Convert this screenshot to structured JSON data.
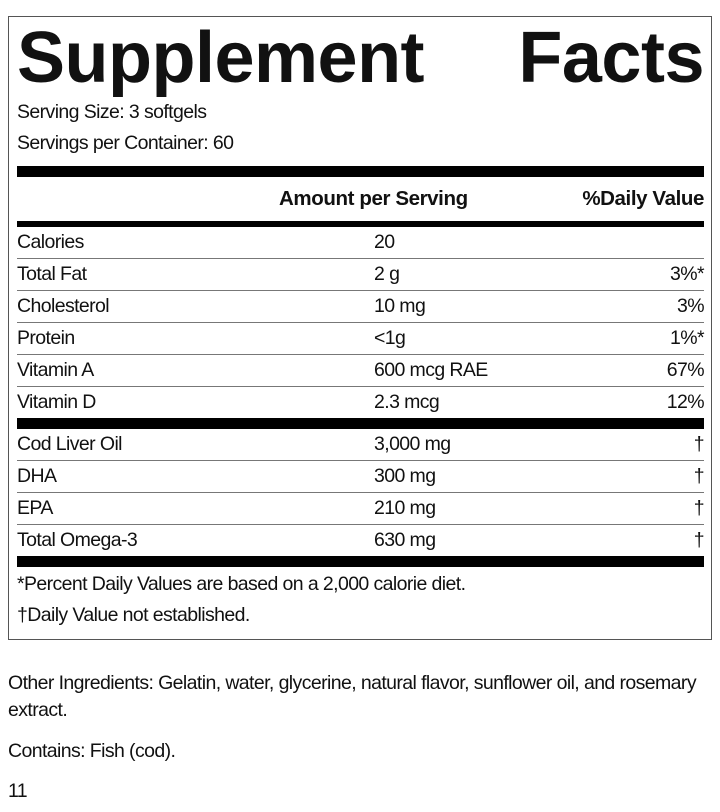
{
  "title": {
    "word1": "Supplement",
    "word2": "Facts"
  },
  "serving_size": "Serving Size: 3 softgels",
  "servings_per_container": "Servings per Container: 60",
  "header": {
    "amount": "Amount per Serving",
    "daily_value": "%Daily Value"
  },
  "nutrients": [
    {
      "name": "Calories",
      "amount": "20",
      "dv": ""
    },
    {
      "name": "Total Fat",
      "amount": "2 g",
      "dv": "3%*"
    },
    {
      "name": "Cholesterol",
      "amount": "10 mg",
      "dv": "3%"
    },
    {
      "name": "Protein",
      "amount": "<1g",
      "dv": "1%*"
    },
    {
      "name": "Vitamin A",
      "amount": "600 mcg RAE",
      "dv": "67%"
    },
    {
      "name": "Vitamin D",
      "amount": "2.3 mcg",
      "dv": "12%"
    }
  ],
  "other_nutrients": [
    {
      "name": "Cod Liver Oil",
      "amount": "3,000 mg",
      "dv": "†"
    },
    {
      "name": "DHA",
      "amount": "300 mg",
      "dv": "†"
    },
    {
      "name": "EPA",
      "amount": "210 mg",
      "dv": "†"
    },
    {
      "name": "Total Omega-3",
      "amount": "630 mg",
      "dv": "†"
    }
  ],
  "footnotes": [
    "*Percent Daily Values are based on a 2,000 calorie diet.",
    "†Daily Value not established."
  ],
  "other_ingredients": "Other Ingredients: Gelatin, water, glycerine, natural flavor, sunflower oil, and rosemary extract.",
  "contains": "Contains: Fish (cod).",
  "page_number": "11"
}
